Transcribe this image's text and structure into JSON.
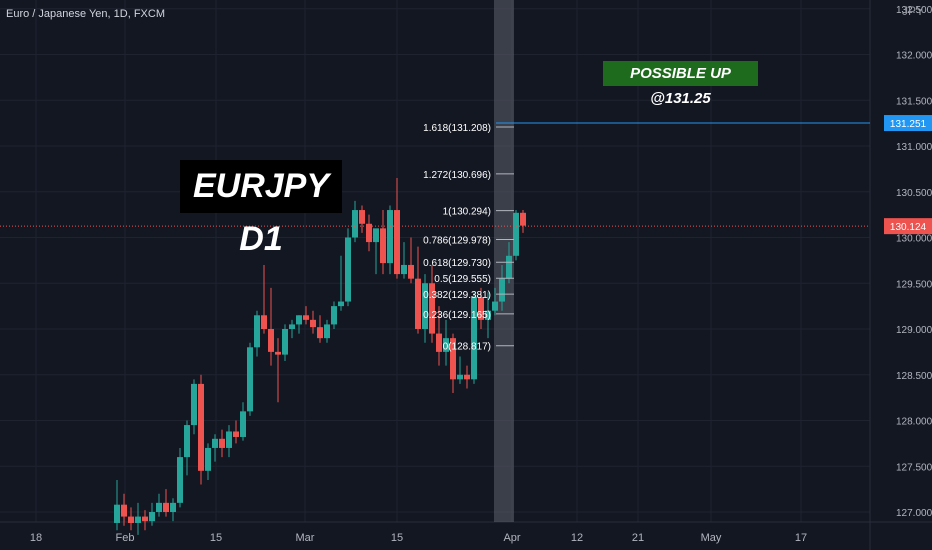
{
  "header": {
    "symbol_label": "Euro / Japanese Yen, 1D, FXCM"
  },
  "title_annotation": "EURJPY D1",
  "note_annotation": "POSSIBLE UP @131.25",
  "corner_label": "JPY",
  "colors": {
    "background": "#131722",
    "up": "#26a69a",
    "down": "#ef5350",
    "target_line": "#2196f3",
    "price_line": "#ef5350",
    "fib": "#b2b5be"
  },
  "chart_data": {
    "type": "candlestick",
    "title": "Euro / Japanese Yen, 1D, FXCM",
    "ylim": [
      126.9,
      132.6
    ],
    "yticks": [
      "127.000",
      "127.500",
      "128.000",
      "128.500",
      "129.000",
      "129.500",
      "130.000",
      "130.500",
      "131.000",
      "131.500",
      "132.000",
      "132.500"
    ],
    "xticks": [
      "18",
      "Feb",
      "15",
      "Mar",
      "15",
      "Apr",
      "12",
      "21",
      "May",
      "17"
    ],
    "candles": [
      {
        "o": 126.88,
        "h": 127.35,
        "l": 126.8,
        "c": 127.08
      },
      {
        "o": 127.08,
        "h": 127.2,
        "l": 126.85,
        "c": 126.95
      },
      {
        "o": 126.95,
        "h": 127.05,
        "l": 126.8,
        "c": 126.88
      },
      {
        "o": 126.88,
        "h": 127.1,
        "l": 126.75,
        "c": 126.95
      },
      {
        "o": 126.95,
        "h": 127.02,
        "l": 126.8,
        "c": 126.9
      },
      {
        "o": 126.9,
        "h": 127.1,
        "l": 126.85,
        "c": 127.0
      },
      {
        "o": 127.0,
        "h": 127.2,
        "l": 126.95,
        "c": 127.1
      },
      {
        "o": 127.1,
        "h": 127.25,
        "l": 126.95,
        "c": 127.0
      },
      {
        "o": 127.0,
        "h": 127.15,
        "l": 126.9,
        "c": 127.1
      },
      {
        "o": 127.1,
        "h": 127.7,
        "l": 127.05,
        "c": 127.6
      },
      {
        "o": 127.6,
        "h": 128.0,
        "l": 127.4,
        "c": 127.95
      },
      {
        "o": 127.95,
        "h": 128.45,
        "l": 127.85,
        "c": 128.4
      },
      {
        "o": 128.4,
        "h": 128.5,
        "l": 127.3,
        "c": 127.45
      },
      {
        "o": 127.45,
        "h": 127.75,
        "l": 127.35,
        "c": 127.7
      },
      {
        "o": 127.7,
        "h": 127.85,
        "l": 127.55,
        "c": 127.8
      },
      {
        "o": 127.8,
        "h": 127.9,
        "l": 127.6,
        "c": 127.7
      },
      {
        "o": 127.7,
        "h": 127.95,
        "l": 127.6,
        "c": 127.88
      },
      {
        "o": 127.88,
        "h": 128.0,
        "l": 127.75,
        "c": 127.82
      },
      {
        "o": 127.82,
        "h": 128.2,
        "l": 127.78,
        "c": 128.1
      },
      {
        "o": 128.1,
        "h": 128.85,
        "l": 128.05,
        "c": 128.8
      },
      {
        "o": 128.8,
        "h": 129.2,
        "l": 128.7,
        "c": 129.15
      },
      {
        "o": 129.15,
        "h": 129.7,
        "l": 128.95,
        "c": 129.0
      },
      {
        "o": 129.0,
        "h": 129.45,
        "l": 128.6,
        "c": 128.75
      },
      {
        "o": 128.75,
        "h": 128.9,
        "l": 128.2,
        "c": 128.72
      },
      {
        "o": 128.72,
        "h": 129.05,
        "l": 128.65,
        "c": 129.0
      },
      {
        "o": 129.0,
        "h": 129.1,
        "l": 128.9,
        "c": 129.05
      },
      {
        "o": 129.05,
        "h": 129.15,
        "l": 128.95,
        "c": 129.15
      },
      {
        "o": 129.15,
        "h": 129.25,
        "l": 129.05,
        "c": 129.1
      },
      {
        "o": 129.1,
        "h": 129.2,
        "l": 128.95,
        "c": 129.02
      },
      {
        "o": 129.02,
        "h": 129.15,
        "l": 128.85,
        "c": 128.9
      },
      {
        "o": 128.9,
        "h": 129.1,
        "l": 128.85,
        "c": 129.05
      },
      {
        "o": 129.05,
        "h": 129.3,
        "l": 129.0,
        "c": 129.25
      },
      {
        "o": 129.25,
        "h": 129.8,
        "l": 129.2,
        "c": 129.3
      },
      {
        "o": 129.3,
        "h": 130.1,
        "l": 129.25,
        "c": 130.0
      },
      {
        "o": 130.0,
        "h": 130.4,
        "l": 129.95,
        "c": 130.3
      },
      {
        "o": 130.3,
        "h": 130.35,
        "l": 130.05,
        "c": 130.15
      },
      {
        "o": 130.15,
        "h": 130.25,
        "l": 129.85,
        "c": 129.95
      },
      {
        "o": 129.95,
        "h": 130.05,
        "l": 129.6,
        "c": 130.1
      },
      {
        "o": 130.1,
        "h": 130.3,
        "l": 129.6,
        "c": 129.72
      },
      {
        "o": 129.72,
        "h": 130.35,
        "l": 129.6,
        "c": 130.3
      },
      {
        "o": 130.3,
        "h": 130.65,
        "l": 129.55,
        "c": 129.6
      },
      {
        "o": 129.6,
        "h": 129.95,
        "l": 129.55,
        "c": 129.7
      },
      {
        "o": 129.7,
        "h": 130.0,
        "l": 129.5,
        "c": 129.55
      },
      {
        "o": 129.55,
        "h": 129.9,
        "l": 128.95,
        "c": 129.0
      },
      {
        "o": 129.0,
        "h": 129.6,
        "l": 128.85,
        "c": 129.5
      },
      {
        "o": 129.5,
        "h": 129.7,
        "l": 128.85,
        "c": 128.95
      },
      {
        "o": 128.95,
        "h": 129.25,
        "l": 128.6,
        "c": 128.75
      },
      {
        "o": 128.75,
        "h": 129.1,
        "l": 128.6,
        "c": 128.9
      },
      {
        "o": 128.9,
        "h": 128.95,
        "l": 128.3,
        "c": 128.45
      },
      {
        "o": 128.45,
        "h": 128.7,
        "l": 128.4,
        "c": 128.5
      },
      {
        "o": 128.5,
        "h": 128.6,
        "l": 128.35,
        "c": 128.45
      },
      {
        "o": 128.45,
        "h": 129.4,
        "l": 128.4,
        "c": 129.35
      },
      {
        "o": 129.35,
        "h": 129.45,
        "l": 129.0,
        "c": 129.1
      },
      {
        "o": 129.1,
        "h": 129.4,
        "l": 128.9,
        "c": 129.2
      },
      {
        "o": 129.2,
        "h": 129.45,
        "l": 129.15,
        "c": 129.3
      },
      {
        "o": 129.3,
        "h": 129.7,
        "l": 129.2,
        "c": 129.55
      },
      {
        "o": 129.55,
        "h": 129.95,
        "l": 129.5,
        "c": 129.8
      },
      {
        "o": 129.8,
        "h": 130.3,
        "l": 129.75,
        "c": 130.27
      },
      {
        "o": 130.27,
        "h": 130.3,
        "l": 130.05,
        "c": 130.13
      }
    ],
    "fib_levels": [
      {
        "label": "1.618(131.208)",
        "price": 131.208
      },
      {
        "label": "1.272(130.696)",
        "price": 130.696
      },
      {
        "label": "1(130.294)",
        "price": 130.294
      },
      {
        "label": "0.786(129.978)",
        "price": 129.978
      },
      {
        "label": "0.618(129.730)",
        "price": 129.73
      },
      {
        "label": "0.5(129.555)",
        "price": 129.555
      },
      {
        "label": "0.382(129.381)",
        "price": 129.381
      },
      {
        "label": "0.236(129.165)",
        "price": 129.165
      },
      {
        "label": "0(128.817)",
        "price": 128.817
      }
    ],
    "target_price": {
      "label": "131.251",
      "price": 131.251
    },
    "last_price": {
      "label": "130.124",
      "price": 130.124
    }
  }
}
